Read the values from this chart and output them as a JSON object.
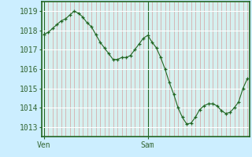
{
  "background_color": "#cceeff",
  "plot_bg_color": "#d6f0ef",
  "line_color": "#226622",
  "marker_color": "#226622",
  "tick_label_color": "#336633",
  "ylim": [
    1012.5,
    1019.5
  ],
  "yticks": [
    1013,
    1014,
    1015,
    1016,
    1017,
    1018,
    1019
  ],
  "ven_x": 0,
  "sam_x": 24,
  "xlim": [
    -0.5,
    47.5
  ],
  "x_values": [
    0,
    1,
    2,
    3,
    4,
    5,
    6,
    7,
    8,
    9,
    10,
    11,
    12,
    13,
    14,
    15,
    16,
    17,
    18,
    19,
    20,
    21,
    22,
    23,
    24,
    25,
    26,
    27,
    28,
    29,
    30,
    31,
    32,
    33,
    34,
    35,
    36,
    37,
    38,
    39,
    40,
    41,
    42,
    43,
    44,
    45,
    46,
    47
  ],
  "y_values": [
    1017.8,
    1017.9,
    1018.1,
    1018.3,
    1018.5,
    1018.6,
    1018.8,
    1019.0,
    1018.9,
    1018.7,
    1018.4,
    1018.2,
    1017.8,
    1017.4,
    1017.1,
    1016.8,
    1016.5,
    1016.5,
    1016.6,
    1016.6,
    1016.7,
    1017.0,
    1017.3,
    1017.6,
    1017.75,
    1017.4,
    1017.1,
    1016.6,
    1016.0,
    1015.3,
    1014.7,
    1014.0,
    1013.5,
    1013.15,
    1013.2,
    1013.5,
    1013.9,
    1014.1,
    1014.2,
    1014.2,
    1014.1,
    1013.85,
    1013.7,
    1013.75,
    1014.0,
    1014.3,
    1015.0,
    1015.5
  ]
}
